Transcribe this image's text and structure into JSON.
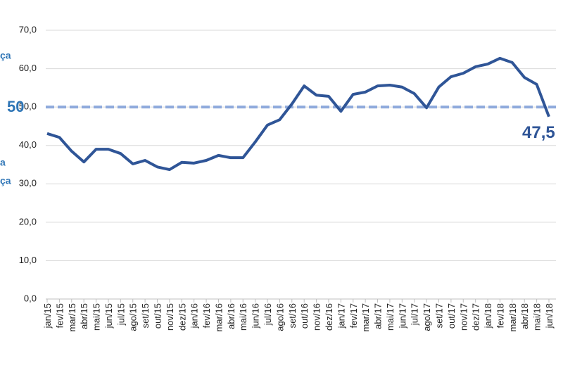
{
  "chart_data": {
    "type": "line",
    "categories": [
      "jan/15",
      "fev/15",
      "mar/15",
      "abr/15",
      "mai/15",
      "jun/15",
      "jul/15",
      "ago/15",
      "set/15",
      "out/15",
      "nov/15",
      "dez/15",
      "jan/16",
      "fev/16",
      "mar/16",
      "abr/16",
      "mai/16",
      "jun/16",
      "jul/16",
      "ago/16",
      "set/16",
      "out/16",
      "nov/16",
      "dez/16",
      "jan/17",
      "fev/17",
      "mar/17",
      "abr/17",
      "mai/17",
      "jun/17",
      "jul/17",
      "ago/17",
      "set/17",
      "out/17",
      "nov/17",
      "dez/17",
      "jan/18",
      "fev/18",
      "mar/18",
      "abr/18",
      "mai/18",
      "jun/18"
    ],
    "series": [
      {
        "color": "#2f5597",
        "values": [
          43.1,
          42.1,
          38.5,
          35.7,
          39.0,
          39.0,
          37.9,
          35.2,
          36.1,
          34.4,
          33.7,
          35.6,
          35.4,
          36.1,
          37.4,
          36.8,
          36.8,
          40.9,
          45.3,
          46.7,
          50.8,
          55.5,
          53.1,
          52.8,
          48.9,
          53.3,
          53.9,
          55.5,
          55.7,
          55.2,
          53.5,
          49.8,
          55.2,
          57.9,
          58.8,
          60.5,
          61.2,
          62.7,
          61.6,
          57.7,
          55.9,
          47.5
        ]
      }
    ],
    "last_value_label": "47,5",
    "reference_line": {
      "value": 50,
      "label": "50",
      "color": "#8faadc"
    },
    "cropped_texts": [
      "ça",
      "a",
      "ça"
    ],
    "ylim": [
      0,
      70
    ],
    "yticks": [
      {
        "value": 0,
        "label": "0,0"
      },
      {
        "value": 10,
        "label": "10,0"
      },
      {
        "value": 20,
        "label": "20,0"
      },
      {
        "value": 30,
        "label": "30,0"
      },
      {
        "value": 40,
        "label": "40,0"
      },
      {
        "value": 50,
        "label": "50,0"
      },
      {
        "value": 60,
        "label": "60,0"
      },
      {
        "value": 70,
        "label": "70,0"
      }
    ],
    "grid": true
  }
}
